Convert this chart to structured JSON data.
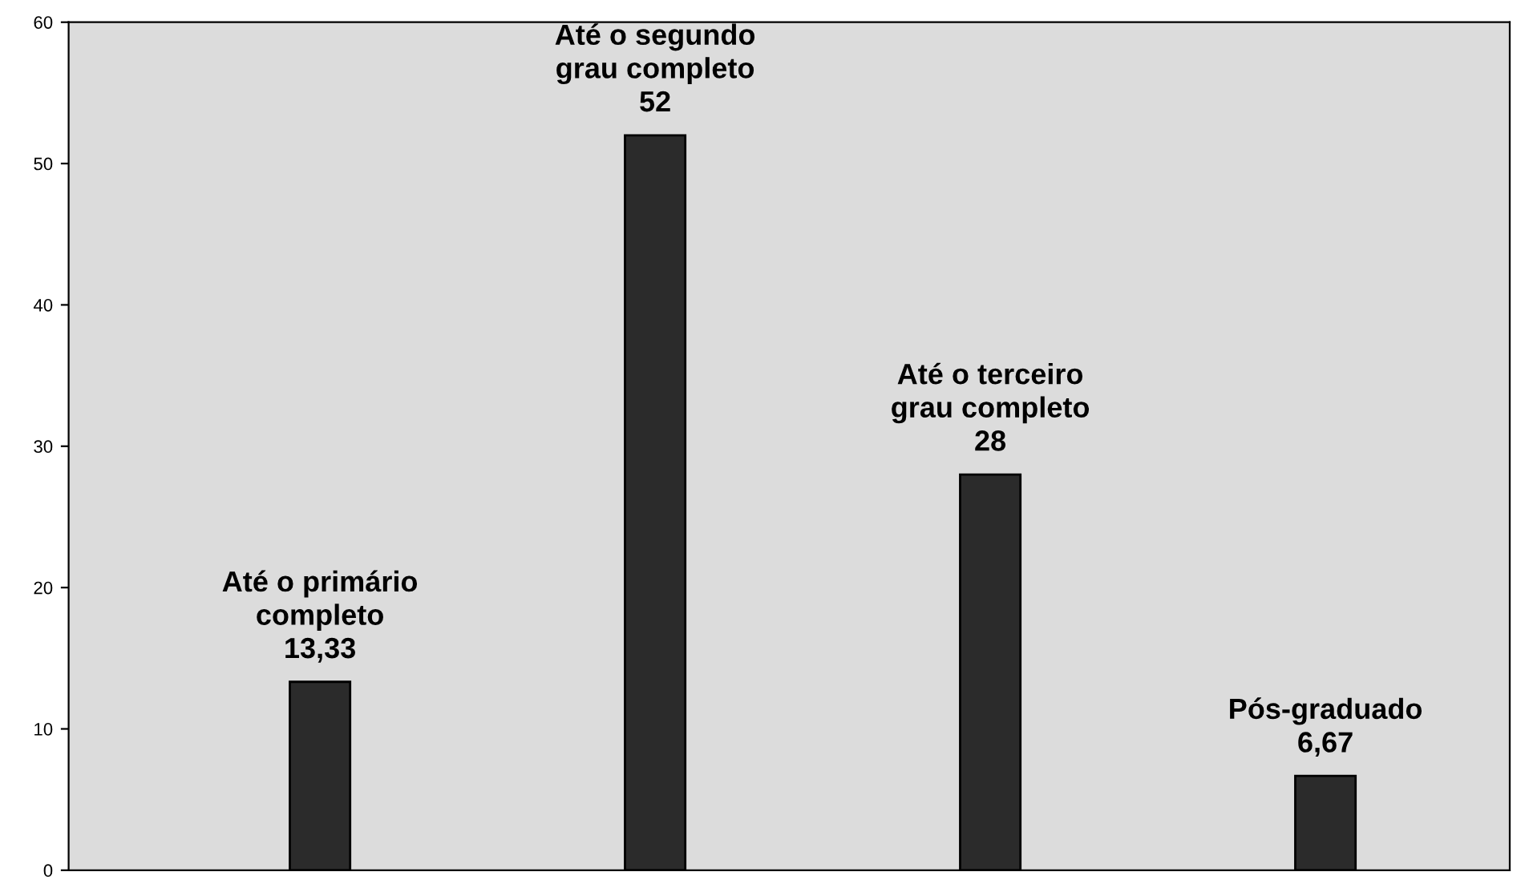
{
  "chart_data": {
    "type": "bar",
    "categories": [
      "Até o primário\ncompleto",
      "Até o segundo\ngrau completo",
      "Até o terceiro\ngrau completo",
      "Pós-graduado"
    ],
    "values": [
      13.33,
      52,
      28,
      6.67
    ],
    "value_labels": [
      "13,33",
      "52",
      "28",
      "6,67"
    ],
    "color": "#2b2b2b",
    "ylim": [
      0,
      60
    ],
    "yticks": [
      0,
      10,
      20,
      30,
      40,
      50,
      60
    ],
    "grid": false
  }
}
